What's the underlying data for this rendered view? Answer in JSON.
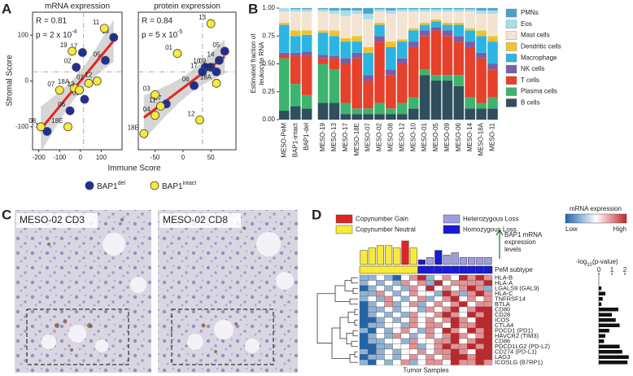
{
  "panels": [
    "A",
    "B",
    "C",
    "D"
  ],
  "images": [
    {
      "label": "MESO-02 CD3"
    },
    {
      "label": "MESO-02 CD8"
    }
  ],
  "chart_data": [
    {
      "type": "scatter",
      "title": "mRNA expression",
      "ylabel": "Stromal Score",
      "xlabel": "Immune Score",
      "stat_r": "R = 0.81",
      "stat_p": "p = 2 x 10",
      "stat_p_exp": "-4",
      "xlim": [
        -230,
        200
      ],
      "ylim": [
        -150,
        150
      ],
      "xticks": [
        -200,
        -100,
        0,
        100
      ],
      "yticks": [
        -100,
        0,
        100
      ],
      "ref_x": 15,
      "ref_y": 20,
      "fit_color": "#e8251c",
      "series": [
        {
          "name": "BAP1",
          "superscript": "del",
          "color": "#1f2f9a",
          "x": [
            160,
            10,
            -20,
            120,
            20,
            -50,
            -160
          ],
          "y": [
            95,
            62,
            30,
            45,
            -40,
            -65,
            -110
          ],
          "labels": [
            "10",
            "17",
            "02",
            "05",
            "09",
            "06",
            "14"
          ]
        },
        {
          "name": "BAP1",
          "superscript": "intact",
          "color": "#f7ea3a",
          "x": [
            115,
            -40,
            80,
            -100,
            -30,
            40,
            -5,
            -190,
            -60
          ],
          "y": [
            115,
            65,
            0,
            -20,
            -15,
            -5,
            -20,
            -100,
            -100
          ],
          "labels": [
            "11",
            "19",
            "12",
            "07",
            "18A",
            "01",
            "13",
            "08",
            "18E"
          ]
        }
      ]
    },
    {
      "type": "scatter",
      "title": "protein expression",
      "stat_r": "R = 0.84",
      "stat_p": "p = 5 x 10",
      "stat_p_exp": "-5",
      "xlim": [
        -80,
        95
      ],
      "ylim": [
        -150,
        150
      ],
      "xticks": [
        -50,
        0,
        50
      ],
      "ref_x": 35,
      "ref_y": 20,
      "fit_color": "#e8251c",
      "series": [
        {
          "name": "BAP1",
          "superscript": "del",
          "color": "#1f2f9a",
          "x": [
            75,
            65,
            50,
            40,
            35,
            60,
            20,
            -30
          ],
          "y": [
            65,
            45,
            30,
            30,
            20,
            20,
            -10,
            -50
          ],
          "labels": [
            "05",
            "14",
            "09",
            "10",
            "17",
            "02",
            "06",
            "07"
          ]
        },
        {
          "name": "BAP1",
          "superscript": "intact",
          "color": "#f7ea3a",
          "x": [
            50,
            -10,
            60,
            -50,
            -40,
            -50,
            30,
            -70
          ],
          "y": [
            125,
            60,
            -5,
            -30,
            -55,
            -75,
            -85,
            -115
          ],
          "labels": [
            "13",
            "01",
            "18A",
            "03",
            "11",
            "04",
            "12",
            "18E"
          ]
        }
      ]
    },
    {
      "type": "stacked_bar",
      "ylabel": [
        "Estimated fraction of",
        "leukocyte RNA"
      ],
      "categories": [
        "MESO-PeM",
        "BAP1-intact",
        "BAP1-del",
        "MESO-19",
        "MESO-13",
        "MESO-17",
        "MESO-18E",
        "MESO-07",
        "MESO-02",
        "MESO-08",
        "MESO-12",
        "MESO-10",
        "MESO-01",
        "MESO-05",
        "MESO-09",
        "MESO-06",
        "MESO-14",
        "MESO-18A",
        "MESO-11"
      ],
      "ylim": [
        0,
        1
      ],
      "yticks": [
        {
          "value": 0,
          "label": "0.00"
        },
        {
          "value": 0.25,
          "label": "0.25"
        },
        {
          "value": 0.5,
          "label": "0.50"
        },
        {
          "value": 0.75,
          "label": "0.75"
        },
        {
          "value": 1,
          "label": "1.00"
        }
      ],
      "series": [
        {
          "name": "PMNs",
          "color": "#4aa3c6",
          "values": [
            0,
            0.01,
            0.01,
            0.01,
            0.02,
            0.02,
            0.02,
            0.05,
            0.01,
            0.02,
            0.01,
            0.01,
            0.01,
            0.01,
            0.01,
            0.01,
            0.01,
            0.02,
            0.02
          ]
        },
        {
          "name": "Eos",
          "color": "#a9dced",
          "values": [
            0.03,
            0.02,
            0.02,
            0.02,
            0.03,
            0.05,
            0.03,
            0.05,
            0.02,
            0.03,
            0.02,
            0.02,
            0.02,
            0.02,
            0.02,
            0.02,
            0.02,
            0.03,
            0.03
          ]
        },
        {
          "name": "Mast cells",
          "color": "#f3e4d2",
          "values": [
            0.1,
            0.17,
            0.17,
            0.17,
            0.15,
            0.2,
            0.2,
            0.25,
            0.1,
            0.25,
            0.25,
            0.15,
            0.1,
            0.07,
            0.1,
            0.1,
            0.15,
            0.15,
            0.2
          ]
        },
        {
          "name": "Dendritic cells",
          "color": "#f0c22e",
          "values": [
            0.02,
            0.05,
            0.04,
            0.02,
            0.05,
            0.03,
            0.05,
            0.05,
            0.02,
            0.05,
            0.02,
            0.02,
            0.02,
            0.02,
            0.02,
            0.02,
            0.02,
            0.05,
            0.05
          ]
        },
        {
          "name": "Macrophage",
          "color": "#2cb5e3",
          "values": [
            0.25,
            0.15,
            0.15,
            0.2,
            0.18,
            0.15,
            0.1,
            0.2,
            0.1,
            0.2,
            0.15,
            0.1,
            0.05,
            0.05,
            0.05,
            0.1,
            0.1,
            0.15,
            0.2
          ]
        },
        {
          "name": "NK cells",
          "color": "#7a5ea6",
          "values": [
            0.02,
            0.03,
            0.04,
            0.03,
            0.02,
            0.05,
            0.05,
            0.05,
            0.05,
            0.05,
            0.05,
            0.05,
            0.05,
            0.03,
            0.05,
            0.05,
            0.05,
            0.05,
            0.05
          ]
        },
        {
          "name": "T cells",
          "color": "#e5412b",
          "values": [
            0.03,
            0.25,
            0.35,
            0.05,
            0.1,
            0.35,
            0.45,
            0.25,
            0.55,
            0.3,
            0.35,
            0.45,
            0.3,
            0.4,
            0.35,
            0.3,
            0.45,
            0.4,
            0.25
          ]
        },
        {
          "name": "Plasma cells",
          "color": "#3db46e",
          "values": [
            0.47,
            0.2,
            0.12,
            0.35,
            0.3,
            0.1,
            0.05,
            0.05,
            0.1,
            0.05,
            0.1,
            0.1,
            0.05,
            0.05,
            0.05,
            0.1,
            0.1,
            0.05,
            0.1
          ]
        },
        {
          "name": "B cells",
          "color": "#2f4e5e",
          "values": [
            0.08,
            0.12,
            0.1,
            0.15,
            0.15,
            0.05,
            0.05,
            0.05,
            0.05,
            0.05,
            0.05,
            0.1,
            0.4,
            0.35,
            0.35,
            0.3,
            0.1,
            0.1,
            0.1
          ]
        }
      ]
    },
    {
      "type": "heatmap",
      "xlabel": "Tumor Samples",
      "rows": [
        "HLA-B",
        "HLA-A",
        "LGALS9 (GAL9)",
        "HLA-C",
        "TNFRSF14",
        "BTLA",
        "CD80",
        "CD28",
        "ICOS",
        "CTLA4",
        "PDCD1 (PD1)",
        "HAVCR2 (TIM3)",
        "CD86",
        "PDCD1LG2 (PD-L2)",
        "CD274 (PD-L1)",
        "LAG3",
        "ICOSLG (B7RP1)"
      ],
      "zlim": [
        -2,
        2
      ],
      "low_color": "#2166ac",
      "mid_color": "#ffffff",
      "high_color": "#c0272d",
      "scale_title": "mRNA expression",
      "scale_low": "Low",
      "scale_high": "High",
      "values": [
        [
          -1,
          -1,
          0,
          -1,
          -2,
          0,
          1,
          2,
          -1,
          0,
          1,
          0,
          2,
          1,
          2,
          1
        ],
        [
          -1,
          0,
          -1,
          0,
          -1,
          1,
          0,
          1,
          -1,
          2,
          0,
          1,
          1,
          1,
          1,
          2
        ],
        [
          -2,
          -1,
          0,
          -1,
          0,
          -1,
          1,
          0,
          2,
          0,
          1,
          0,
          1,
          2,
          1,
          -1
        ],
        [
          -1,
          -1,
          1,
          0,
          -1,
          0,
          1,
          0,
          0,
          -1,
          2,
          1,
          -1,
          1,
          2,
          1
        ],
        [
          -1,
          0,
          -1,
          1,
          0,
          -1,
          0,
          1,
          -1,
          0,
          1,
          2,
          0,
          1,
          0,
          1
        ],
        [
          -2,
          -1,
          0,
          1,
          -1,
          0,
          1,
          -1,
          0,
          1,
          0,
          1,
          2,
          0,
          1,
          1
        ],
        [
          -2,
          -1,
          -1,
          0,
          -1,
          0,
          0,
          -1,
          1,
          0,
          1,
          2,
          0,
          1,
          2,
          2
        ],
        [
          -2,
          -1,
          0,
          -1,
          0,
          -1,
          1,
          0,
          0,
          1,
          2,
          1,
          0,
          2,
          1,
          2
        ],
        [
          -2,
          -2,
          -1,
          0,
          -1,
          0,
          1,
          0,
          1,
          0,
          1,
          2,
          1,
          0,
          2,
          2
        ],
        [
          -2,
          -1,
          -1,
          0,
          0,
          -1,
          1,
          0,
          1,
          1,
          0,
          2,
          1,
          1,
          2,
          2
        ],
        [
          -1,
          -2,
          0,
          -1,
          0,
          1,
          0,
          -1,
          1,
          0,
          2,
          1,
          0,
          2,
          1,
          2
        ],
        [
          -2,
          -1,
          0,
          -1,
          1,
          0,
          -1,
          0,
          1,
          0,
          1,
          2,
          1,
          0,
          1,
          2
        ],
        [
          -2,
          -1,
          -1,
          0,
          0,
          -1,
          1,
          0,
          0,
          1,
          1,
          2,
          0,
          1,
          2,
          2
        ],
        [
          -2,
          -2,
          -1,
          -1,
          0,
          0,
          1,
          -1,
          0,
          1,
          2,
          1,
          1,
          2,
          1,
          2
        ],
        [
          -1,
          -2,
          -1,
          0,
          -1,
          0,
          0,
          1,
          0,
          1,
          1,
          2,
          1,
          0,
          2,
          2
        ],
        [
          -2,
          -1,
          -1,
          0,
          -1,
          0,
          1,
          0,
          1,
          0,
          1,
          2,
          2,
          1,
          2,
          2
        ],
        [
          -1,
          -2,
          0,
          -1,
          0,
          1,
          -1,
          0,
          1,
          1,
          0,
          2,
          1,
          1,
          2,
          1
        ]
      ],
      "bap1_label": [
        "BAP1 mRNA",
        "expression",
        "levels"
      ],
      "bap1_expression": [
        0.6,
        0.7,
        0.8,
        0.8,
        0.7,
        1.0,
        0.7,
        0.2,
        0.3,
        0.6,
        0.4,
        0.5,
        0.3,
        0.3,
        0.3,
        0.3
      ],
      "bap1_cnv": [
        1,
        1,
        1,
        1,
        1,
        0,
        1,
        3,
        2,
        3,
        2,
        2,
        2,
        2,
        2,
        2
      ],
      "cnv_legend": [
        {
          "name": "Copynumber Gain",
          "color": "#e02424"
        },
        {
          "name": "Copynumber Neutral",
          "color": "#f7ea3a"
        },
        {
          "name": "Heterozygous Loss",
          "color": "#9d9de0"
        },
        {
          "name": "Homozygous Loss",
          "color": "#1a1ad0"
        }
      ],
      "subtype_label": "PeM subtype",
      "subtype_colors": [
        "#f7ea3a",
        "#f7ea3a",
        "#f7ea3a",
        "#f7ea3a",
        "#f7ea3a",
        "#f7ea3a",
        "#f7ea3a",
        "#1a1ad0",
        "#1a1ad0",
        "#1a1ad0",
        "#1a1ad0",
        "#1a1ad0",
        "#1a1ad0",
        "#1a1ad0",
        "#1a1ad0",
        "#1a1ad0"
      ]
    },
    {
      "type": "hbar",
      "title": "-log",
      "title_sub": "10",
      "title_rest": "(p-value)",
      "color": "#111111",
      "xlim": [
        0,
        2.5
      ],
      "xticks": [
        0,
        1,
        2
      ],
      "values": [
        0,
        0,
        0.2,
        0.5,
        0.3,
        0.2,
        1.5,
        1.0,
        1.3,
        1.6,
        0.8,
        0.5,
        0.4,
        1.6,
        1.8,
        2.3,
        2.2
      ]
    }
  ]
}
